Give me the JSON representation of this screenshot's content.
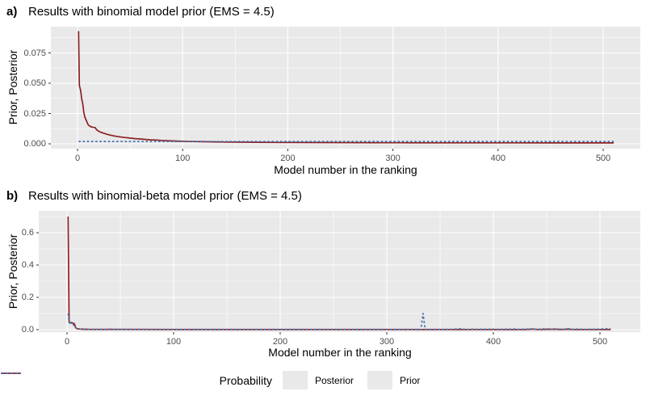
{
  "figure": {
    "panel_bg": "#E9E9E9",
    "grid_color": "#FFFFFF",
    "tick_mark_color": "#333333",
    "tick_label_color": "#4D4D4D",
    "posterior_color": "#8B2222",
    "prior_color": "#4472B4"
  },
  "legend": {
    "title": "Probability",
    "entries": [
      {
        "label": "Posterior",
        "color": "#8B2222",
        "dash": "solid"
      },
      {
        "label": "Prior",
        "color": "#4472B4",
        "dash": "dashed"
      }
    ],
    "position": "bottom"
  },
  "chart_data": [
    {
      "type": "line",
      "tag": "a)",
      "title": "Results with binomial model prior (EMS = 4.5)",
      "xlabel": "Model number in the ranking",
      "ylabel": "Prior, Posterior",
      "xlim": [
        -25,
        535
      ],
      "ylim": [
        -0.0047,
        0.0967
      ],
      "grid": "on",
      "xticks": {
        "values": [
          0,
          100,
          200,
          300,
          400,
          500
        ],
        "labels": [
          "0",
          "100",
          "200",
          "300",
          "400",
          "500"
        ]
      },
      "yticks": {
        "values": [
          0,
          0.025,
          0.05,
          0.075
        ],
        "labels": [
          "0.000",
          "0.025",
          "0.050",
          "0.075"
        ]
      },
      "x_minor": [
        50,
        150,
        250,
        350,
        450
      ],
      "y_minor": [
        0.0125,
        0.0375,
        0.0625,
        0.0875
      ],
      "series": [
        {
          "name": "Posterior",
          "color": "#8B2222",
          "dash": "solid",
          "points": [
            [
              1,
              0.093
            ],
            [
              1.8,
              0.048
            ],
            [
              3,
              0.044
            ],
            [
              3.5,
              0.04
            ],
            [
              4,
              0.037
            ],
            [
              5,
              0.033
            ],
            [
              6,
              0.026
            ],
            [
              7,
              0.022
            ],
            [
              8,
              0.02
            ],
            [
              9,
              0.018
            ],
            [
              10,
              0.016
            ],
            [
              11,
              0.015
            ],
            [
              13,
              0.014
            ],
            [
              15,
              0.0136
            ],
            [
              17,
              0.0133
            ],
            [
              18,
              0.0118
            ],
            [
              20,
              0.0105
            ],
            [
              22,
              0.0096
            ],
            [
              25,
              0.0087
            ],
            [
              28,
              0.0079
            ],
            [
              31,
              0.0072
            ],
            [
              35,
              0.0065
            ],
            [
              40,
              0.0058
            ],
            [
              45,
              0.0052
            ],
            [
              50,
              0.0047
            ],
            [
              55,
              0.0043
            ],
            [
              60,
              0.004
            ],
            [
              65,
              0.0036
            ],
            [
              70,
              0.0033
            ],
            [
              75,
              0.0031
            ],
            [
              80,
              0.0028
            ],
            [
              85,
              0.0026
            ],
            [
              90,
              0.0024
            ],
            [
              95,
              0.0023
            ],
            [
              100,
              0.0021
            ],
            [
              110,
              0.0019
            ],
            [
              120,
              0.0017
            ],
            [
              130,
              0.0016
            ],
            [
              140,
              0.0015
            ],
            [
              150,
              0.0014
            ],
            [
              170,
              0.00125
            ],
            [
              190,
              0.00115
            ],
            [
              220,
              0.00105
            ],
            [
              250,
              0.00098
            ],
            [
              280,
              0.00092
            ],
            [
              310,
              0.00088
            ],
            [
              350,
              0.00083
            ],
            [
              400,
              0.00079
            ],
            [
              450,
              0.00076
            ],
            [
              510,
              0.00073
            ]
          ]
        },
        {
          "name": "Prior",
          "color": "#4472B4",
          "dash": "dashed",
          "points": [
            [
              1,
              0.00195
            ],
            [
              510,
              0.00195
            ]
          ]
        }
      ]
    },
    {
      "type": "line",
      "tag": "b)",
      "title": "Results with binomial-beta model prior (EMS = 4.5)",
      "xlabel": "Model number in the ranking",
      "ylabel": "Prior, Posterior",
      "xlim": [
        -25,
        538
      ],
      "ylim": [
        -0.035,
        0.735
      ],
      "grid": "on",
      "xticks": {
        "values": [
          0,
          100,
          200,
          300,
          400,
          500
        ],
        "labels": [
          "0",
          "100",
          "200",
          "300",
          "400",
          "500"
        ]
      },
      "yticks": {
        "values": [
          0,
          0.2,
          0.4,
          0.6
        ],
        "labels": [
          "0.0",
          "0.2",
          "0.4",
          "0.6"
        ]
      },
      "x_minor": [
        50,
        150,
        250,
        350,
        450
      ],
      "y_minor": [
        0.1,
        0.3,
        0.5,
        0.7
      ],
      "series": [
        {
          "name": "Posterior",
          "color": "#8B2222",
          "dash": "solid",
          "points": [
            [
              1,
              0.7
            ],
            [
              2,
              0.046
            ],
            [
              3,
              0.044
            ],
            [
              5,
              0.042
            ],
            [
              6,
              0.04
            ],
            [
              7,
              0.036
            ],
            [
              8,
              0.014
            ],
            [
              9,
              0.007
            ],
            [
              10,
              0.005
            ],
            [
              12,
              0.004
            ],
            [
              15,
              0.003
            ],
            [
              20,
              0.0022
            ],
            [
              30,
              0.0016
            ],
            [
              39,
              0.0016
            ],
            [
              40,
              0.003
            ],
            [
              42,
              0.0015
            ],
            [
              60,
              0.0013
            ],
            [
              100,
              0.0012
            ],
            [
              150,
              0.0011
            ],
            [
              200,
              0.001
            ],
            [
              250,
              0.001
            ],
            [
              300,
              0.001
            ],
            [
              360,
              0.001
            ],
            [
              379,
              0.001
            ],
            [
              380,
              0.0025
            ],
            [
              382,
              0.001
            ],
            [
              430,
              0.001
            ],
            [
              438,
              0.0035
            ],
            [
              442,
              0.0012
            ],
            [
              458,
              0.003
            ],
            [
              463,
              0.0012
            ],
            [
              470,
              0.0028
            ],
            [
              475,
              0.001
            ],
            [
              510,
              0.001
            ]
          ]
        },
        {
          "name": "Prior",
          "color": "#4472B4",
          "dash": "dashed",
          "points": [
            [
              1,
              0.1
            ],
            [
              2,
              0.05
            ],
            [
              3,
              0.03
            ],
            [
              4,
              0.046
            ],
            [
              5,
              0.04
            ],
            [
              6,
              0.03
            ],
            [
              7,
              0.02
            ],
            [
              8,
              0.012
            ],
            [
              9,
              0.008
            ],
            [
              10,
              0.005
            ],
            [
              12,
              0.0035
            ],
            [
              15,
              0.0025
            ],
            [
              20,
              0.002
            ],
            [
              50,
              0.002
            ],
            [
              100,
              0.002
            ],
            [
              150,
              0.002
            ],
            [
              200,
              0.002
            ],
            [
              250,
              0.002
            ],
            [
              300,
              0.002
            ],
            [
              332,
              0.002
            ],
            [
              334,
              0.1
            ],
            [
              336,
              0.002
            ],
            [
              360,
              0.002
            ],
            [
              370,
              0.006
            ],
            [
              373,
              0.002
            ],
            [
              400,
              0.003
            ],
            [
              405,
              0.002
            ],
            [
              420,
              0.004
            ],
            [
              424,
              0.002
            ],
            [
              437,
              0.005
            ],
            [
              440,
              0.002
            ],
            [
              450,
              0.006
            ],
            [
              454,
              0.002
            ],
            [
              461,
              0.005
            ],
            [
              465,
              0.002
            ],
            [
              470,
              0.006
            ],
            [
              474,
              0.002
            ],
            [
              480,
              0.004
            ],
            [
              484,
              0.002
            ],
            [
              498,
              0.003
            ],
            [
              504,
              0.005
            ],
            [
              510,
              0.007
            ]
          ]
        }
      ]
    }
  ]
}
